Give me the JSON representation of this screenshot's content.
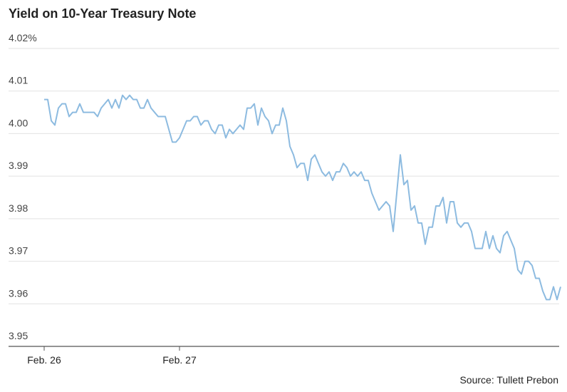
{
  "chart_data": {
    "type": "line",
    "title": "Yield on 10-Year Treasury Note",
    "source": "Source: Tullett Prebon",
    "categories": [
      "Feb. 26",
      null,
      null,
      null,
      null,
      null,
      null,
      null,
      null,
      null,
      null,
      null,
      null,
      null,
      null,
      null,
      null,
      null,
      null,
      null,
      null,
      null,
      null,
      null,
      null,
      null,
      null,
      null,
      null,
      null,
      null,
      null,
      null,
      null,
      null,
      null,
      null,
      null,
      "Feb. 27",
      null,
      null,
      null,
      null,
      null,
      null,
      null,
      null,
      null,
      null,
      null,
      null,
      null,
      null,
      null,
      null,
      null,
      null,
      null,
      null,
      null,
      null,
      null,
      null,
      null,
      null,
      null,
      null,
      null,
      null,
      null,
      null,
      null,
      null,
      null,
      null,
      null,
      null,
      null,
      null,
      null,
      null,
      null,
      null,
      null,
      null,
      null,
      null,
      null,
      null,
      null,
      null,
      null,
      null,
      null,
      null,
      null,
      null,
      null,
      null,
      null,
      null,
      null,
      null,
      null,
      null,
      null,
      null,
      null,
      null,
      null,
      null,
      null,
      null,
      null,
      null,
      null,
      null,
      null,
      null,
      null,
      null,
      null,
      null,
      null,
      null,
      null,
      null,
      null,
      null,
      null,
      null,
      null,
      null,
      null,
      null,
      null,
      null,
      null,
      null,
      null,
      null,
      null,
      null,
      null,
      null,
      null
    ],
    "values": [
      4.008,
      4.008,
      4.003,
      4.002,
      4.006,
      4.007,
      4.007,
      4.004,
      4.005,
      4.005,
      4.007,
      4.005,
      4.005,
      4.005,
      4.005,
      4.004,
      4.006,
      4.007,
      4.008,
      4.006,
      4.008,
      4.006,
      4.009,
      4.008,
      4.009,
      4.008,
      4.008,
      4.006,
      4.006,
      4.008,
      4.006,
      4.005,
      4.004,
      4.004,
      4.004,
      4.001,
      3.998,
      3.998,
      3.999,
      4.001,
      4.003,
      4.003,
      4.004,
      4.004,
      4.002,
      4.003,
      4.003,
      4.001,
      4.0,
      4.002,
      4.002,
      3.999,
      4.001,
      4.0,
      4.001,
      4.002,
      4.001,
      4.006,
      4.006,
      4.007,
      4.002,
      4.006,
      4.004,
      4.003,
      4.0,
      4.002,
      4.002,
      4.006,
      4.003,
      3.997,
      3.995,
      3.992,
      3.993,
      3.993,
      3.989,
      3.994,
      3.995,
      3.993,
      3.991,
      3.99,
      3.991,
      3.989,
      3.991,
      3.991,
      3.993,
      3.992,
      3.99,
      3.991,
      3.99,
      3.991,
      3.989,
      3.989,
      3.986,
      3.984,
      3.982,
      3.983,
      3.984,
      3.983,
      3.977,
      3.986,
      3.995,
      3.988,
      3.989,
      3.982,
      3.983,
      3.979,
      3.979,
      3.974,
      3.978,
      3.978,
      3.983,
      3.983,
      3.985,
      3.979,
      3.984,
      3.984,
      3.979,
      3.978,
      3.979,
      3.979,
      3.977,
      3.973,
      3.973,
      3.973,
      3.977,
      3.973,
      3.976,
      3.973,
      3.972,
      3.976,
      3.977,
      3.975,
      3.973,
      3.968,
      3.967,
      3.97,
      3.97,
      3.969,
      3.966,
      3.966,
      3.963,
      3.961,
      3.961,
      3.964,
      3.961,
      3.964
    ],
    "color": "#8dbbe0",
    "ylim": [
      3.95,
      4.02
    ],
    "yticks": [
      {
        "value": 3.95,
        "label": "3.95"
      },
      3.96,
      3.97,
      3.98,
      3.99,
      {
        "value": 4,
        "label": "4.00"
      },
      4.01,
      {
        "value": 4.02,
        "label": "4.02%"
      }
    ],
    "grid": true
  }
}
